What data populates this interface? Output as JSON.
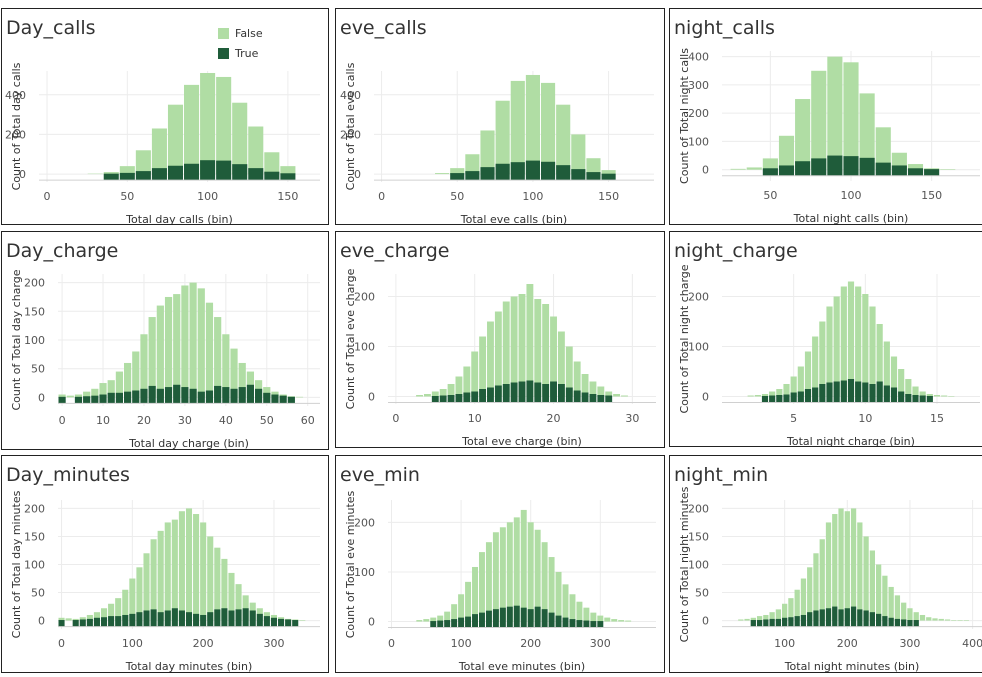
{
  "legend": {
    "items": [
      {
        "label": "False",
        "color": "#b0dda4"
      },
      {
        "label": "True",
        "color": "#1f5c3a"
      }
    ]
  },
  "panels": [
    {
      "id": "day_calls",
      "title": "Day_calls"
    },
    {
      "id": "eve_calls",
      "title": "eve_calls"
    },
    {
      "id": "night_calls",
      "title": "night_calls"
    },
    {
      "id": "day_charge",
      "title": "Day_charge"
    },
    {
      "id": "eve_charge",
      "title": "eve_charge"
    },
    {
      "id": "night_charge",
      "title": "night_charge"
    },
    {
      "id": "day_minutes",
      "title": "Day_minutes"
    },
    {
      "id": "eve_min",
      "title": "eve_min"
    },
    {
      "id": "night_min",
      "title": "night_min"
    }
  ],
  "chart_data": [
    {
      "type": "bar",
      "title": "Day_calls",
      "xlabel": "Total day calls (bin)",
      "ylabel": "Count of Total day calls",
      "xlim": [
        -5,
        170
      ],
      "ylim": [
        -40,
        520
      ],
      "xticks": [
        0,
        50,
        100,
        150
      ],
      "yticks": [
        0,
        200,
        400
      ],
      "bin_width": 10,
      "x": [
        30,
        40,
        50,
        60,
        70,
        80,
        90,
        100,
        110,
        120,
        130,
        140,
        150
      ],
      "series": [
        {
          "name": "False",
          "values": [
            2,
            10,
            40,
            120,
            230,
            350,
            450,
            510,
            490,
            360,
            240,
            110,
            40
          ]
        },
        {
          "name": "True",
          "values": [
            0,
            2,
            6,
            15,
            30,
            42,
            52,
            70,
            68,
            50,
            30,
            12,
            4
          ]
        }
      ]
    },
    {
      "type": "bar",
      "title": "eve_calls",
      "xlabel": "Total eve calls (bin)",
      "ylabel": "Count of Total eve calls",
      "xlim": [
        -5,
        180
      ],
      "ylim": [
        -40,
        520
      ],
      "xticks": [
        0,
        50,
        100,
        150
      ],
      "yticks": [
        0,
        200,
        400
      ],
      "bin_width": 10,
      "x": [
        40,
        50,
        60,
        70,
        80,
        90,
        100,
        110,
        120,
        130,
        140,
        150
      ],
      "series": [
        {
          "name": "False",
          "values": [
            5,
            30,
            100,
            220,
            370,
            470,
            500,
            460,
            350,
            200,
            80,
            20
          ]
        },
        {
          "name": "True",
          "values": [
            0,
            5,
            15,
            35,
            52,
            60,
            68,
            62,
            45,
            25,
            10,
            2
          ]
        }
      ]
    },
    {
      "type": "bar",
      "title": "night_calls",
      "xlabel": "Total night calls (bin)",
      "ylabel": "Count of Total night calls",
      "xlim": [
        20,
        180
      ],
      "ylim": [
        -40,
        420
      ],
      "xticks": [
        50,
        100,
        150
      ],
      "yticks": [
        0,
        100,
        200,
        300,
        400
      ],
      "bin_width": 10,
      "x": [
        30,
        40,
        50,
        60,
        70,
        80,
        90,
        100,
        110,
        120,
        130,
        140,
        150,
        160
      ],
      "series": [
        {
          "name": "False",
          "values": [
            3,
            8,
            40,
            120,
            250,
            350,
            400,
            380,
            270,
            150,
            60,
            20,
            5,
            2
          ]
        },
        {
          "name": "True",
          "values": [
            0,
            0,
            5,
            15,
            30,
            40,
            50,
            48,
            42,
            25,
            15,
            5,
            2,
            0
          ]
        }
      ]
    },
    {
      "type": "bar",
      "title": "Day_charge",
      "xlabel": "Total day charge (bin)",
      "ylabel": "Count of Total day charge",
      "xlim": [
        -1,
        63
      ],
      "ylim": [
        -15,
        215
      ],
      "xticks": [
        0,
        10,
        20,
        30,
        40,
        50,
        60
      ],
      "yticks": [
        0,
        50,
        100,
        150,
        200
      ],
      "bin_width": 2,
      "x": [
        0,
        2,
        4,
        6,
        8,
        10,
        12,
        14,
        16,
        18,
        20,
        22,
        24,
        26,
        28,
        30,
        32,
        34,
        36,
        38,
        40,
        42,
        44,
        46,
        48,
        50,
        52,
        54,
        56,
        58
      ],
      "series": [
        {
          "name": "False",
          "values": [
            5,
            3,
            5,
            10,
            15,
            25,
            30,
            45,
            60,
            80,
            110,
            140,
            160,
            175,
            180,
            195,
            200,
            190,
            165,
            140,
            110,
            85,
            60,
            45,
            30,
            18,
            10,
            5,
            2,
            1
          ]
        },
        {
          "name": "True",
          "values": [
            1,
            0,
            1,
            2,
            3,
            5,
            8,
            8,
            10,
            12,
            15,
            20,
            15,
            18,
            22,
            18,
            15,
            10,
            12,
            20,
            18,
            15,
            18,
            22,
            15,
            8,
            5,
            3,
            1,
            0
          ]
        }
      ]
    },
    {
      "type": "bar",
      "title": "eve_charge",
      "xlabel": "Total eve charge (bin)",
      "ylabel": "Count of Total eve charge",
      "xlim": [
        -1,
        33
      ],
      "ylim": [
        -15,
        245
      ],
      "xticks": [
        0,
        10,
        20,
        30
      ],
      "yticks": [
        0,
        100,
        200
      ],
      "bin_width": 1,
      "x": [
        3,
        4,
        5,
        6,
        7,
        8,
        9,
        10,
        11,
        12,
        13,
        14,
        15,
        16,
        17,
        18,
        19,
        20,
        21,
        22,
        23,
        24,
        25,
        26,
        27,
        28,
        29
      ],
      "series": [
        {
          "name": "False",
          "values": [
            3,
            5,
            10,
            15,
            25,
            40,
            60,
            90,
            120,
            150,
            170,
            190,
            200,
            205,
            225,
            195,
            185,
            160,
            130,
            100,
            70,
            45,
            30,
            20,
            10,
            5,
            2
          ]
        },
        {
          "name": "True",
          "values": [
            0,
            0,
            1,
            2,
            3,
            5,
            8,
            10,
            15,
            18,
            22,
            25,
            28,
            30,
            32,
            28,
            25,
            30,
            25,
            18,
            12,
            8,
            5,
            3,
            2,
            0,
            0
          ]
        }
      ]
    },
    {
      "type": "bar",
      "title": "night_charge",
      "xlabel": "Total night charge (bin)",
      "ylabel": "Count of Total night charge",
      "xlim": [
        0,
        18
      ],
      "ylim": [
        -15,
        245
      ],
      "xticks": [
        5,
        10,
        15
      ],
      "yticks": [
        0,
        100,
        200
      ],
      "bin_width": 0.5,
      "x": [
        2,
        2.5,
        3,
        3.5,
        4,
        4.5,
        5,
        5.5,
        6,
        6.5,
        7,
        7.5,
        8,
        8.5,
        9,
        9.5,
        10,
        10.5,
        11,
        11.5,
        12,
        12.5,
        13,
        13.5,
        14,
        14.5,
        15,
        15.5,
        16
      ],
      "series": [
        {
          "name": "False",
          "values": [
            2,
            3,
            5,
            10,
            15,
            25,
            40,
            60,
            90,
            120,
            150,
            180,
            200,
            220,
            230,
            220,
            205,
            180,
            145,
            110,
            80,
            55,
            35,
            20,
            10,
            5,
            3,
            2,
            1
          ]
        },
        {
          "name": "True",
          "values": [
            0,
            0,
            1,
            2,
            3,
            4,
            8,
            10,
            15,
            18,
            25,
            28,
            30,
            32,
            35,
            30,
            28,
            25,
            30,
            22,
            18,
            10,
            5,
            3,
            2,
            1,
            0,
            0,
            0
          ]
        }
      ]
    },
    {
      "type": "bar",
      "title": "Day_minutes",
      "xlabel": "Total day minutes (bin)",
      "ylabel": "Count of Total day minutes",
      "xlim": [
        -5,
        365
      ],
      "ylim": [
        -15,
        215
      ],
      "xticks": [
        0,
        100,
        200,
        300
      ],
      "yticks": [
        0,
        50,
        100,
        150,
        200
      ],
      "bin_width": 10,
      "x": [
        0,
        10,
        20,
        30,
        40,
        50,
        60,
        70,
        80,
        90,
        100,
        110,
        120,
        130,
        140,
        150,
        160,
        170,
        180,
        190,
        200,
        210,
        220,
        230,
        240,
        250,
        260,
        270,
        280,
        290,
        300,
        310,
        320,
        330,
        340
      ],
      "series": [
        {
          "name": "False",
          "values": [
            5,
            4,
            3,
            6,
            10,
            15,
            22,
            30,
            40,
            55,
            75,
            95,
            120,
            145,
            160,
            175,
            180,
            195,
            200,
            190,
            175,
            150,
            130,
            110,
            85,
            65,
            45,
            32,
            22,
            15,
            10,
            6,
            3,
            2,
            1
          ]
        },
        {
          "name": "True",
          "values": [
            1,
            0,
            1,
            2,
            3,
            5,
            6,
            8,
            8,
            10,
            12,
            15,
            18,
            20,
            15,
            18,
            22,
            18,
            15,
            12,
            10,
            15,
            20,
            22,
            18,
            20,
            22,
            18,
            12,
            8,
            5,
            3,
            2,
            1,
            0
          ]
        }
      ]
    },
    {
      "type": "bar",
      "title": "eve_min",
      "xlabel": "Total eve minutes (bin)",
      "ylabel": "Count of Total eve minutes",
      "xlim": [
        -5,
        380
      ],
      "ylim": [
        -15,
        245
      ],
      "xticks": [
        0,
        100,
        200,
        300
      ],
      "yticks": [
        0,
        100,
        200
      ],
      "bin_width": 10,
      "x": [
        40,
        50,
        60,
        70,
        80,
        90,
        100,
        110,
        120,
        130,
        140,
        150,
        160,
        170,
        180,
        190,
        200,
        210,
        220,
        230,
        240,
        250,
        260,
        270,
        280,
        290,
        300,
        310,
        320,
        330,
        340
      ],
      "series": [
        {
          "name": "False",
          "values": [
            3,
            5,
            8,
            12,
            20,
            35,
            55,
            80,
            110,
            140,
            160,
            180,
            190,
            200,
            210,
            225,
            200,
            185,
            160,
            130,
            100,
            75,
            55,
            40,
            28,
            18,
            12,
            8,
            5,
            3,
            2
          ]
        },
        {
          "name": "True",
          "values": [
            0,
            0,
            1,
            2,
            3,
            5,
            8,
            10,
            15,
            18,
            22,
            25,
            28,
            30,
            32,
            28,
            25,
            30,
            25,
            18,
            12,
            8,
            5,
            3,
            2,
            1,
            1,
            0,
            0,
            0,
            0
          ]
        }
      ]
    },
    {
      "type": "bar",
      "title": "night_min",
      "xlabel": "Total night minutes (bin)",
      "ylabel": "Count of Total night minutes",
      "xlim": [
        0,
        415
      ],
      "ylim": [
        -15,
        215
      ],
      "xticks": [
        100,
        200,
        300,
        400
      ],
      "yticks": [
        0,
        50,
        100,
        150,
        200
      ],
      "bin_width": 10,
      "x": [
        30,
        40,
        50,
        60,
        70,
        80,
        90,
        100,
        110,
        120,
        130,
        140,
        150,
        160,
        170,
        180,
        190,
        200,
        210,
        220,
        230,
        240,
        250,
        260,
        270,
        280,
        290,
        300,
        310,
        320,
        330,
        340,
        350,
        360,
        370,
        380,
        390
      ],
      "series": [
        {
          "name": "False",
          "values": [
            2,
            3,
            5,
            8,
            10,
            15,
            20,
            30,
            40,
            55,
            75,
            95,
            120,
            145,
            175,
            190,
            200,
            195,
            200,
            175,
            150,
            125,
            100,
            80,
            60,
            45,
            32,
            22,
            15,
            10,
            6,
            4,
            3,
            2,
            1,
            1,
            1
          ]
        },
        {
          "name": "True",
          "values": [
            0,
            0,
            1,
            1,
            2,
            3,
            3,
            5,
            6,
            8,
            10,
            15,
            18,
            20,
            22,
            25,
            20,
            22,
            25,
            20,
            18,
            15,
            12,
            8,
            5,
            3,
            2,
            1,
            1,
            0,
            0,
            0,
            0,
            0,
            0,
            0,
            0
          ]
        }
      ]
    }
  ]
}
